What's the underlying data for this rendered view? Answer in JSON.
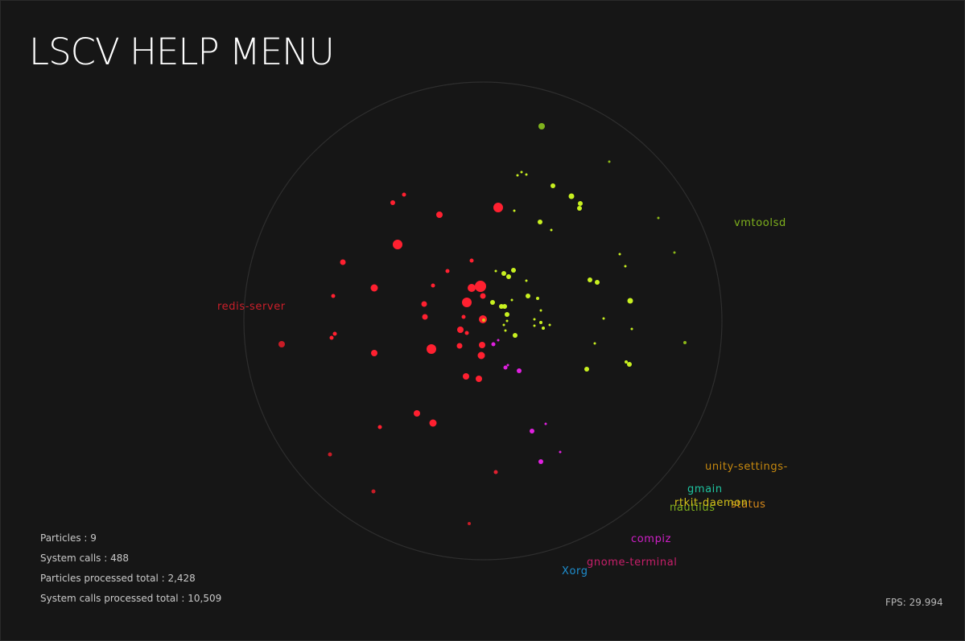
{
  "title": "LSCV HELP MENU",
  "processes": [
    {
      "name": "redis-server",
      "color": "#cc1f2a"
    },
    {
      "name": "vmtoolsd",
      "color": "#7fb21d"
    },
    {
      "name": "unity-settings-",
      "color": "#c7890f"
    },
    {
      "name": "gmain",
      "color": "#1ec4a0"
    },
    {
      "name": "rtkit-daemon",
      "color": "#d4c21a"
    },
    {
      "name": "nautilus",
      "color": "#7fb21d"
    },
    {
      "name": "status",
      "color": "#d98a1a"
    },
    {
      "name": "compiz",
      "color": "#d01fc8"
    },
    {
      "name": "gnome-terminal",
      "color": "#c81f6a"
    },
    {
      "name": "Xorg",
      "color": "#1e8fd0"
    }
  ],
  "stats": {
    "particles": "Particles : 9",
    "system_calls": "System calls : 488",
    "particles_total": "Particles processed total : 2,428",
    "system_calls_total": "System calls processed total : 10,509"
  },
  "fps": "FPS:  29.994"
}
